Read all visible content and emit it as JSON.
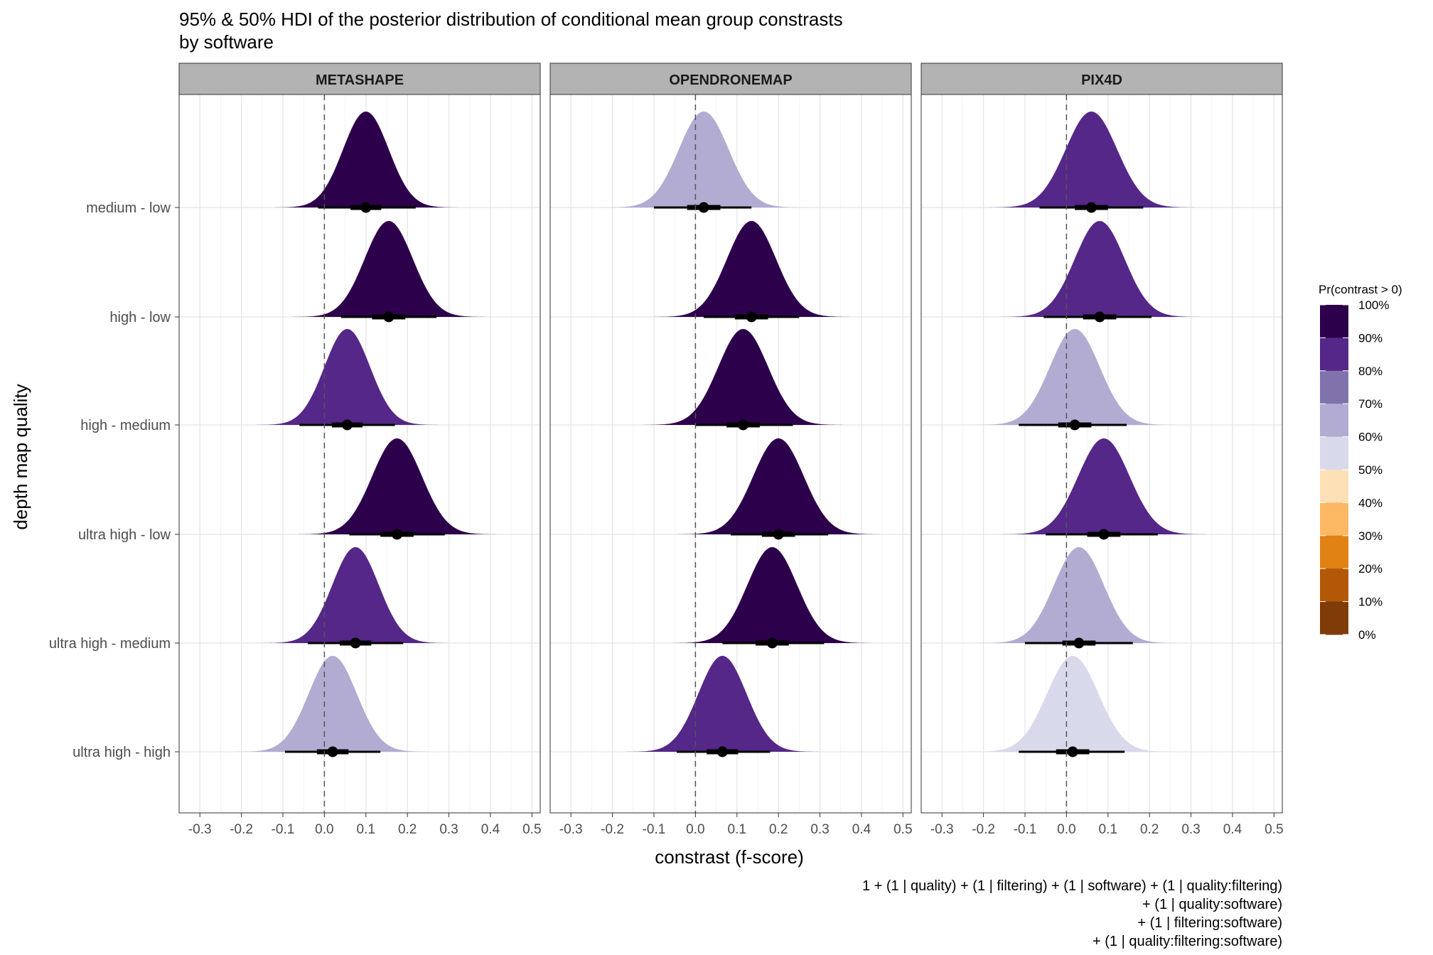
{
  "title_line1": "95% & 50% HDI of the posterior distribution of conditional mean group constrasts",
  "title_line2": "by software",
  "xlabel": "constrast (f-score)",
  "ylabel": "depth map quality",
  "caption": [
    "1 + (1 | quality) + (1 | filtering) + (1 | software) + (1 | quality:filtering)",
    "+ (1 | quality:software)",
    "+ (1 | filtering:software)",
    "+ (1 | quality:filtering:software)"
  ],
  "legend": {
    "title": "Pr(contrast > 0)",
    "breaks": [
      "100%",
      "90%",
      "80%",
      "70%",
      "60%",
      "50%",
      "40%",
      "30%",
      "20%",
      "10%",
      "0%"
    ],
    "colors": [
      "#2d004b",
      "#542788",
      "#8073ac",
      "#b2abd2",
      "#d8daeb",
      "#fee0b6",
      "#fdb863",
      "#e08214",
      "#b35806",
      "#7f3b08"
    ]
  },
  "chart_data": {
    "type": "halfeye",
    "title": "95% & 50% HDI of the posterior distribution of conditional mean group constrasts by software",
    "xlabel": "constrast (f-score)",
    "ylabel": "depth map quality",
    "xlim": [
      -0.35,
      0.52
    ],
    "xticks": [
      -0.3,
      -0.2,
      -0.1,
      0.0,
      0.1,
      0.2,
      0.3,
      0.4,
      0.5
    ],
    "xtick_labels": [
      "-0.3",
      "-0.2",
      "-0.1",
      "0.0",
      "0.1",
      "0.2",
      "0.3",
      "0.4",
      "0.5"
    ],
    "categories": [
      "medium - low",
      "high - low",
      "high - medium",
      "ultra high - low",
      "ultra high - medium",
      "ultra high - high"
    ],
    "reference_line_x": 0,
    "grid": true,
    "legend_position": "right",
    "panels": [
      {
        "name": "METASHAPE",
        "rows": [
          {
            "category": "medium - low",
            "median": 0.1,
            "sd": 0.055,
            "hdi50": [
              0.063,
              0.137
            ],
            "hdi95": [
              -0.015,
              0.22
            ],
            "pr_gt0": "100%",
            "color": "#2d004b"
          },
          {
            "category": "high - low",
            "median": 0.155,
            "sd": 0.058,
            "hdi50": [
              0.115,
              0.195
            ],
            "hdi95": [
              0.04,
              0.27
            ],
            "pr_gt0": "100%",
            "color": "#2d004b"
          },
          {
            "category": "high - medium",
            "median": 0.055,
            "sd": 0.055,
            "hdi50": [
              0.018,
              0.092
            ],
            "hdi95": [
              -0.06,
              0.17
            ],
            "pr_gt0": "90%",
            "color": "#542788"
          },
          {
            "category": "ultra high - low",
            "median": 0.175,
            "sd": 0.06,
            "hdi50": [
              0.135,
              0.215
            ],
            "hdi95": [
              0.06,
              0.29
            ],
            "pr_gt0": "100%",
            "color": "#2d004b"
          },
          {
            "category": "ultra high - medium",
            "median": 0.075,
            "sd": 0.056,
            "hdi50": [
              0.037,
              0.113
            ],
            "hdi95": [
              -0.04,
              0.19
            ],
            "pr_gt0": "90%",
            "color": "#542788"
          },
          {
            "category": "ultra high - high",
            "median": 0.02,
            "sd": 0.058,
            "hdi50": [
              -0.018,
              0.058
            ],
            "hdi95": [
              -0.095,
              0.135
            ],
            "pr_gt0": "70%",
            "color": "#b2abd2"
          }
        ]
      },
      {
        "name": "OPENDRONEMAP",
        "rows": [
          {
            "category": "medium - low",
            "median": 0.02,
            "sd": 0.06,
            "hdi50": [
              -0.02,
              0.06
            ],
            "hdi95": [
              -0.1,
              0.135
            ],
            "pr_gt0": "70%",
            "color": "#b2abd2"
          },
          {
            "category": "high - low",
            "median": 0.135,
            "sd": 0.059,
            "hdi50": [
              0.095,
              0.175
            ],
            "hdi95": [
              0.02,
              0.25
            ],
            "pr_gt0": "100%",
            "color": "#2d004b"
          },
          {
            "category": "high - medium",
            "median": 0.115,
            "sd": 0.06,
            "hdi50": [
              0.075,
              0.155
            ],
            "hdi95": [
              0.0,
              0.235
            ],
            "pr_gt0": "100%",
            "color": "#2d004b"
          },
          {
            "category": "ultra high - low",
            "median": 0.2,
            "sd": 0.061,
            "hdi50": [
              0.16,
              0.24
            ],
            "hdi95": [
              0.085,
              0.32
            ],
            "pr_gt0": "100%",
            "color": "#2d004b"
          },
          {
            "category": "ultra high - medium",
            "median": 0.185,
            "sd": 0.06,
            "hdi50": [
              0.145,
              0.225
            ],
            "hdi95": [
              0.065,
              0.31
            ],
            "pr_gt0": "100%",
            "color": "#2d004b"
          },
          {
            "category": "ultra high - high",
            "median": 0.065,
            "sd": 0.058,
            "hdi50": [
              0.027,
              0.103
            ],
            "hdi95": [
              -0.045,
              0.18
            ],
            "pr_gt0": "90%",
            "color": "#542788"
          }
        ]
      },
      {
        "name": "PIX4D",
        "rows": [
          {
            "category": "medium - low",
            "median": 0.06,
            "sd": 0.062,
            "hdi50": [
              0.02,
              0.1
            ],
            "hdi95": [
              -0.065,
              0.185
            ],
            "pr_gt0": "90%",
            "color": "#542788"
          },
          {
            "category": "high - low",
            "median": 0.08,
            "sd": 0.06,
            "hdi50": [
              0.04,
              0.12
            ],
            "hdi95": [
              -0.055,
              0.205
            ],
            "pr_gt0": "90%",
            "color": "#542788"
          },
          {
            "category": "high - medium",
            "median": 0.02,
            "sd": 0.06,
            "hdi50": [
              -0.02,
              0.06
            ],
            "hdi95": [
              -0.115,
              0.145
            ],
            "pr_gt0": "70%",
            "color": "#b2abd2"
          },
          {
            "category": "ultra high - low",
            "median": 0.09,
            "sd": 0.062,
            "hdi50": [
              0.05,
              0.13
            ],
            "hdi95": [
              -0.05,
              0.22
            ],
            "pr_gt0": "90%",
            "color": "#542788"
          },
          {
            "category": "ultra high - medium",
            "median": 0.03,
            "sd": 0.06,
            "hdi50": [
              -0.01,
              0.07
            ],
            "hdi95": [
              -0.1,
              0.16
            ],
            "pr_gt0": "70%",
            "color": "#b2abd2"
          },
          {
            "category": "ultra high - high",
            "median": 0.015,
            "sd": 0.062,
            "hdi50": [
              -0.025,
              0.055
            ],
            "hdi95": [
              -0.115,
              0.14
            ],
            "pr_gt0": "60%",
            "color": "#d8daeb"
          }
        ]
      }
    ]
  }
}
